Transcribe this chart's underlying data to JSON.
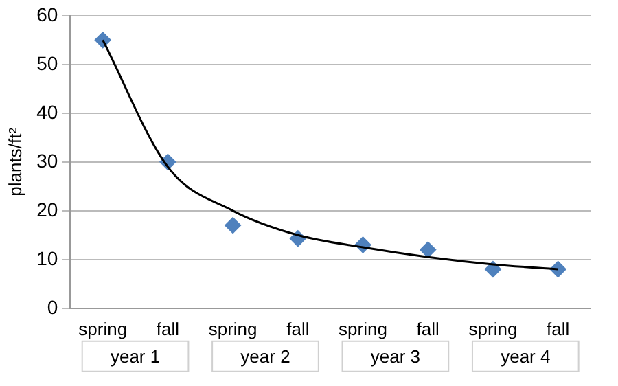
{
  "chart_data": {
    "type": "scatter",
    "ylabel": "plants/ft²",
    "categories": [
      "spring",
      "fall",
      "spring",
      "fall",
      "spring",
      "fall",
      "spring",
      "fall"
    ],
    "series": [
      {
        "type": "line",
        "color": "#000000",
        "marker": "none",
        "values": [
          55,
          29,
          20,
          15,
          12.5,
          10.5,
          9,
          8
        ]
      },
      {
        "color": "#4f81bd",
        "marker": "diamond",
        "values": [
          55,
          30,
          17,
          14.3,
          13,
          12,
          8,
          8
        ]
      }
    ],
    "annotations": [
      "year 1",
      "year 2",
      "year 3",
      "year 4"
    ],
    "ylim": [
      0,
      60
    ],
    "yticks": [
      0,
      10,
      20,
      30,
      40,
      50,
      60
    ],
    "grid": "y",
    "legend": false
  }
}
